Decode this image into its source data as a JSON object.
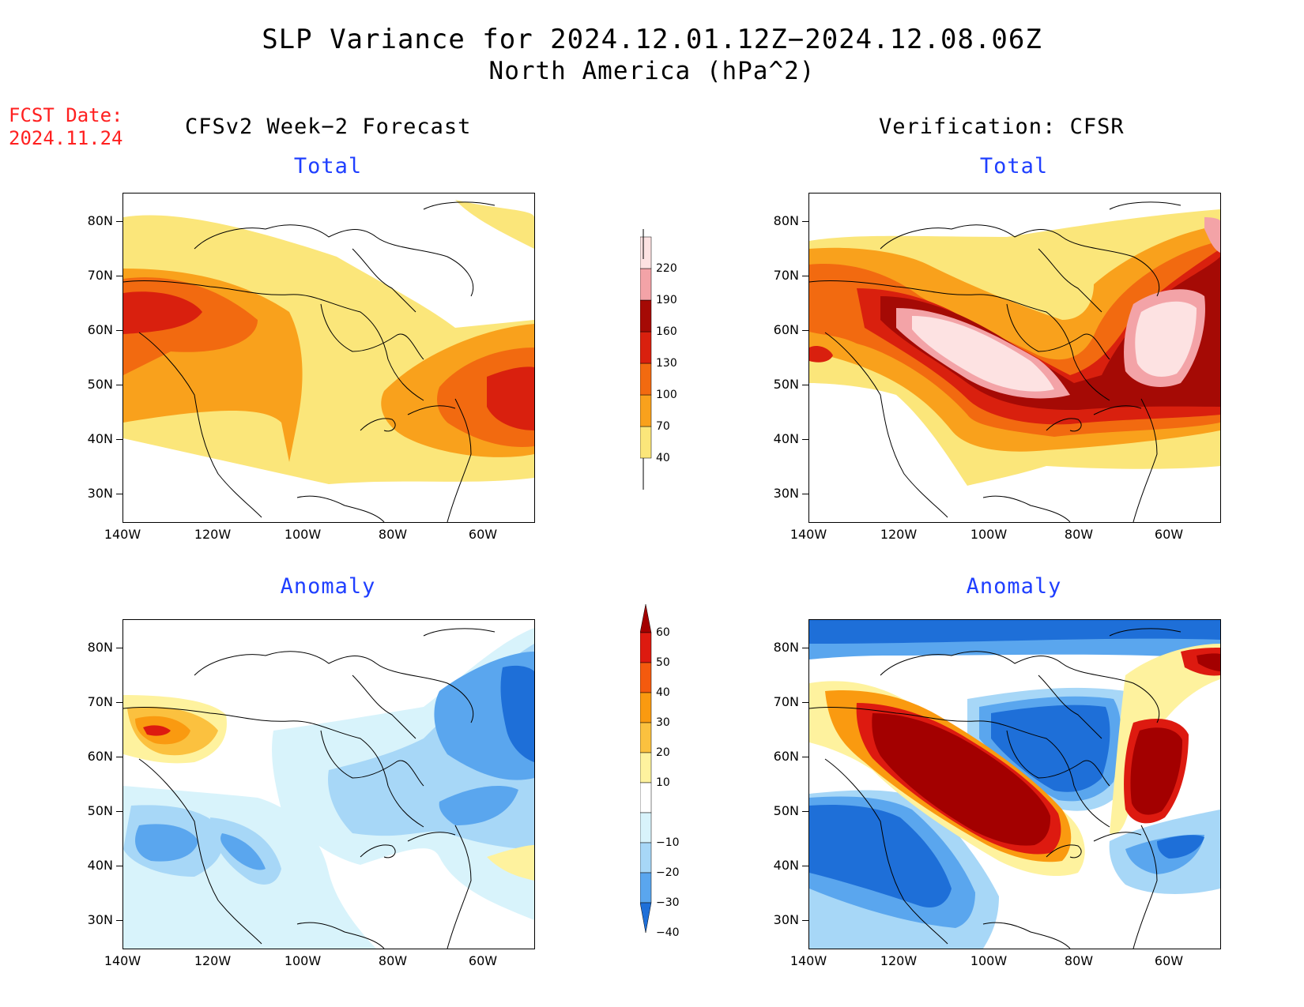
{
  "title": {
    "line1": "SLP Variance for 2024.12.01.12Z−2024.12.08.06Z",
    "line2": "North America (hPa^2)"
  },
  "fcst_date": {
    "label": "FCST Date:",
    "value": "2024.11.24"
  },
  "columns": {
    "left_header": "CFSv2 Week−2 Forecast",
    "right_header": "Verification: CFSR"
  },
  "panels": {
    "forecast_total": "Total",
    "verification_total": "Total",
    "forecast_anomaly": "Anomaly",
    "verification_anomaly": "Anomaly"
  },
  "axes": {
    "lat_labels": [
      "80N",
      "70N",
      "60N",
      "50N",
      "40N",
      "30N"
    ],
    "lon_labels": [
      "140W",
      "120W",
      "100W",
      "80W",
      "60W"
    ]
  },
  "colorbars": {
    "total": {
      "levels": [
        "40",
        "70",
        "100",
        "130",
        "160",
        "190",
        "220"
      ],
      "colors": [
        "#fbe67a",
        "#f9a11c",
        "#f26a10",
        "#d9200e",
        "#a50a05",
        "#f3a3a7",
        "#fde2e2"
      ]
    },
    "anomaly": {
      "levels": [
        "60",
        "50",
        "40",
        "30",
        "20",
        "10",
        "−10",
        "−20",
        "−30",
        "−40"
      ],
      "colors": [
        "#a30000",
        "#dd1a10",
        "#f45a0e",
        "#fa9a10",
        "#fbc13f",
        "#fef29e",
        "#ffffff",
        "#d8f3fb",
        "#a7d7f7",
        "#5aa6ee",
        "#1e6fd8"
      ]
    }
  }
}
